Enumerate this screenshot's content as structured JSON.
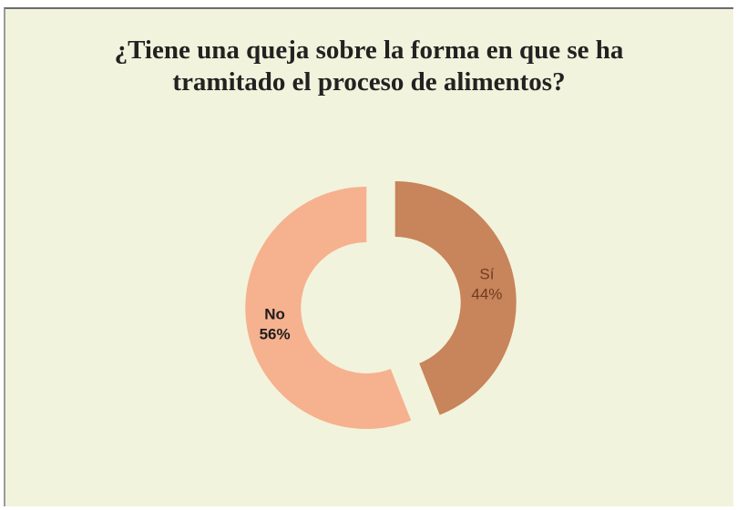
{
  "chart_data": {
    "type": "donut",
    "title": "¿Tiene una queja sobre la forma en que se ha tramitado el proceso de alimentos?",
    "categories": [
      "Sí",
      "No"
    ],
    "values": [
      44,
      56
    ],
    "value_labels": [
      "44%",
      "56%"
    ],
    "colors": [
      "#c8845a",
      "#f6b18f"
    ],
    "label_colors": [
      "#6e3c22",
      "#1e1e1e"
    ]
  }
}
